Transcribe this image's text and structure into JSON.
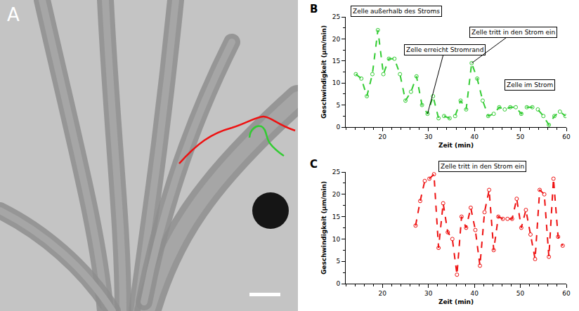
{
  "image_panel": {
    "panel": "A"
  },
  "chart_data": [
    {
      "panel": "B",
      "type": "line",
      "x_label": "Zeit (min)",
      "y_label": "Geschwindigkeit (µm/min)",
      "xlim": [
        12,
        60
      ],
      "xticks": [
        20,
        30,
        40,
        50,
        60
      ],
      "ylim": [
        0,
        25
      ],
      "yticks": [
        0,
        5,
        10,
        15,
        20,
        25
      ],
      "grid": false,
      "series": [
        {
          "color": "#33cc33",
          "marker": "circle-open",
          "line_style": "dash",
          "x": [
            14.2,
            15.4,
            16.6,
            17.8,
            19.0,
            20.2,
            21.4,
            22.6,
            23.8,
            25.0,
            26.2,
            27.4,
            28.6,
            29.8,
            31.0,
            32.2,
            33.4,
            34.6,
            35.8,
            37.0,
            38.2,
            39.4,
            40.6,
            41.8,
            43.0,
            44.2,
            45.4,
            46.6,
            47.8,
            49.0,
            50.2,
            51.4,
            52.6,
            53.8,
            55.0,
            56.2,
            57.4,
            58.6,
            59.8
          ],
          "values": [
            12,
            11,
            7,
            12,
            22,
            12,
            15.5,
            15.5,
            12,
            6,
            8,
            11.5,
            5,
            3,
            7,
            2,
            2.5,
            2,
            2.5,
            6,
            4,
            14.5,
            11,
            6,
            2.5,
            3,
            4.5,
            4,
            4.5,
            4.5,
            3,
            4.5,
            4.5,
            4,
            2.5,
            0.5,
            2.5,
            3.5,
            2.5
          ]
        }
      ],
      "annotations": [
        {
          "text": "Zelle außerhalb des Stroms",
          "x": 13,
          "y": 25
        },
        {
          "text": "Zelle erreicht Stromrand",
          "x": 33.5,
          "y": 17.5,
          "point": [
            29.8,
            3
          ]
        },
        {
          "text": "Zelle tritt in den Strom ein",
          "x": 48.5,
          "y": 21.5,
          "point": [
            39.4,
            14.5
          ]
        },
        {
          "text": "Zelle im Strom",
          "x": 52,
          "y": 9.5
        }
      ]
    },
    {
      "panel": "C",
      "type": "line",
      "x_label": "Zeit (min)",
      "y_label": "Geschwindigkeit (µm/min)",
      "xlim": [
        12,
        60
      ],
      "xticks": [
        20,
        30,
        40,
        50,
        60
      ],
      "ylim": [
        0,
        25
      ],
      "yticks": [
        0,
        5,
        10,
        15,
        20,
        25
      ],
      "grid": false,
      "series": [
        {
          "color": "#ee1111",
          "marker": "circle-open",
          "line_style": "dash",
          "x": [
            27.2,
            28.2,
            29.2,
            30.2,
            31.2,
            32.2,
            33.2,
            34.2,
            35.2,
            36.2,
            37.2,
            38.2,
            39.2,
            40.2,
            41.2,
            42.2,
            43.2,
            44.2,
            45.2,
            46.2,
            47.2,
            48.2,
            49.2,
            50.2,
            51.2,
            52.2,
            53.2,
            54.2,
            55.2,
            56.2,
            57.2,
            58.2,
            59.2
          ],
          "values": [
            13,
            18.5,
            23,
            23.5,
            24.5,
            8,
            18,
            11.5,
            10,
            2,
            15,
            12.5,
            17,
            12,
            4,
            16,
            21,
            7.5,
            15,
            14.5,
            14.5,
            14.5,
            19,
            12.5,
            16.5,
            11,
            5.5,
            21,
            20,
            6,
            23.5,
            10.5,
            8.5
          ]
        }
      ],
      "annotations": [
        {
          "text": "Zelle tritt in den Strom ein",
          "x": 32.2,
          "y": 25
        }
      ]
    }
  ]
}
